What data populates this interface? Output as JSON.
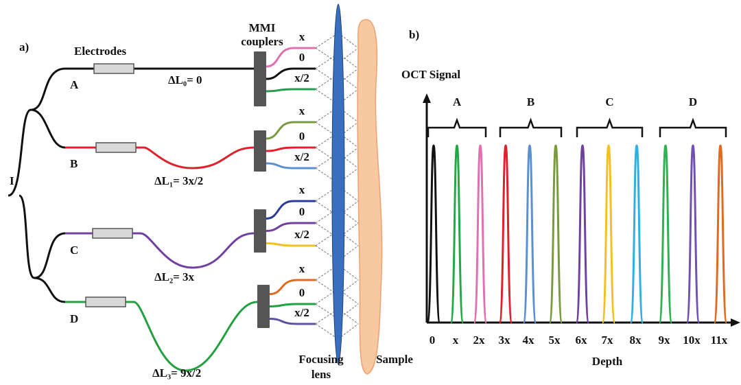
{
  "panel_a": {
    "label": "a)",
    "input_label": "I",
    "electrodes_label": "Electrodes",
    "couplers_label": "MMI couplers",
    "lens_label": "Focusing lens",
    "sample_label": "Sample",
    "branches": [
      {
        "name": "A",
        "delta": "ΔL₀= 0",
        "color": "#111111",
        "outputs": [
          "x",
          "0",
          "x/2"
        ],
        "output_colors": [
          "#e070b0",
          "#111111",
          "#22a050"
        ]
      },
      {
        "name": "B",
        "delta": "ΔL₁= 3x/2",
        "color": "#e0202a",
        "outputs": [
          "x",
          "0",
          "x/2"
        ],
        "output_colors": [
          "#7a9a40",
          "#e0202a",
          "#5a8fd0"
        ]
      },
      {
        "name": "C",
        "delta": "ΔL₂= 3x",
        "color": "#7040a0",
        "outputs": [
          "x",
          "0",
          "x/2"
        ],
        "output_colors": [
          "#2a3a9a",
          "#7040a0",
          "#f2c020"
        ]
      },
      {
        "name": "D",
        "delta": "ΔL₃= 9x/2",
        "color": "#22a040",
        "outputs": [
          "x",
          "0",
          "x/2"
        ],
        "output_colors": [
          "#e06a20",
          "#22a040",
          "#6050a0"
        ]
      }
    ]
  },
  "panel_b": {
    "label": "b)",
    "y_label": "OCT Signal",
    "x_label": "Depth",
    "groups": [
      "A",
      "B",
      "C",
      "D"
    ],
    "depth_labels": [
      "0",
      "x",
      "2x",
      "3x",
      "4x",
      "5x",
      "6x",
      "7x",
      "8x",
      "9x",
      "10x",
      "11x"
    ],
    "peak_colors": [
      "#111111",
      "#22a845",
      "#e070b0",
      "#e0202a",
      "#5a8fd0",
      "#7a9a40",
      "#7040a0",
      "#f2c020",
      "#30b0e0",
      "#30b050",
      "#7050b0",
      "#e06a20"
    ]
  }
}
